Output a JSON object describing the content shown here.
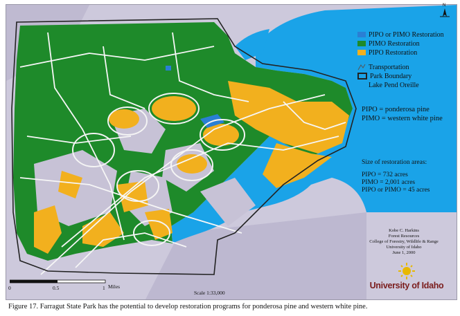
{
  "legend": {
    "items": [
      {
        "label": "PIPO or PIMO Restoration",
        "color": "#2a7fd4"
      },
      {
        "label": "PIMO Restoration",
        "color": "#1e8a2a"
      },
      {
        "label": "PIPO Restoration",
        "color": "#f2b01e"
      }
    ],
    "transportation": "Transportation",
    "park_boundary": "Park Boundary",
    "lake": {
      "label": "Lake Pend Oreille",
      "color": "#1aa3e8"
    }
  },
  "definitions": [
    "PIPO = ponderosa pine",
    "PIMO = western white pine"
  ],
  "size": {
    "header": "Size of restoration areas:",
    "lines": [
      "PIPO = 732 acres",
      "PIMO = 2,001 acres",
      "PIPO or PIMO = 45 acres"
    ]
  },
  "credit": [
    "Kobe C. Harkins",
    "Forest Resources",
    "College of Forestry, Wildlife & Range",
    "University of Idaho",
    "June 1, 2000"
  ],
  "logo_text": "University of Idaho",
  "scale": {
    "ticks": [
      "0",
      "0.5",
      "1"
    ],
    "unit": "Miles",
    "ratio": "Scale 1:33,000"
  },
  "north_label": "N",
  "caption": "Figure 17. Farragut State Park has the potential to develop restoration programs for ponderosa pine and western white pine."
}
